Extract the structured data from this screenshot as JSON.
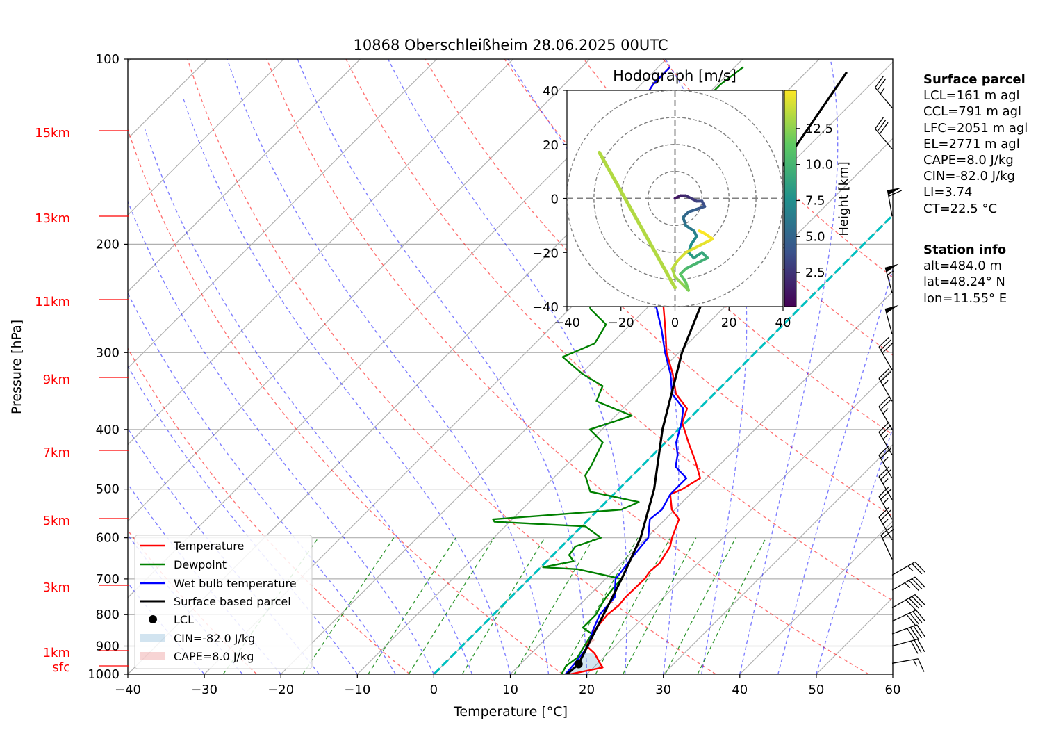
{
  "chart_data": {
    "type": "skew-t log-p diagram",
    "title": "10868 Oberschleißheim 28.06.2025 00UTC",
    "xlabel": "Temperature [°C]",
    "ylabel": "Pressure [hPa]",
    "xlim": [
      -40,
      60
    ],
    "ylim": [
      1000,
      100
    ],
    "y_scale": "log",
    "x_ticks": [
      "−40",
      "−30",
      "−20",
      "−10",
      "0",
      "10",
      "20",
      "30",
      "40",
      "50",
      "60"
    ],
    "y_ticks": [
      "100",
      "200",
      "300",
      "400",
      "500",
      "600",
      "700",
      "800",
      "900",
      "1000"
    ],
    "height_labels": [
      "15km",
      "13km",
      "11km",
      "9km",
      "7km",
      "5km",
      "3km",
      "1km",
      "sfc"
    ],
    "height_label_color": "#ff0000",
    "grid": true,
    "legend_position": "lower-left",
    "legend": [
      "Temperature",
      "Dewpoint",
      "Wet bulb temperature",
      "Surface based parcel",
      "LCL",
      "CIN=-82.0 J/kg",
      "CAPE=8.0 J/kg"
    ],
    "series": [
      {
        "name": "Temperature",
        "color": "#ff0000",
        "points": [
          [
            1000,
            17.8
          ],
          [
            975,
            21.2
          ],
          [
            960,
            20.3
          ],
          [
            925,
            18.3
          ],
          [
            900,
            16.3
          ],
          [
            850,
            15.3
          ],
          [
            800,
            14.9
          ],
          [
            775,
            15.2
          ],
          [
            750,
            15.0
          ],
          [
            700,
            15.1
          ],
          [
            680,
            14.8
          ],
          [
            660,
            15.0
          ],
          [
            620,
            14.2
          ],
          [
            600,
            13.3
          ],
          [
            560,
            11.8
          ],
          [
            540,
            9.6
          ],
          [
            510,
            7.4
          ],
          [
            500,
            8.3
          ],
          [
            480,
            9.2
          ],
          [
            450,
            6.3
          ],
          [
            420,
            3.0
          ],
          [
            390,
            -0.4
          ],
          [
            370,
            -1.6
          ],
          [
            350,
            -5.0
          ],
          [
            325,
            -8.0
          ],
          [
            300,
            -11.6
          ],
          [
            275,
            -14.8
          ],
          [
            250,
            -18.4
          ],
          [
            225,
            -23.4
          ],
          [
            210,
            -26.7
          ],
          [
            195,
            -28.6
          ],
          [
            182,
            -32.7
          ],
          [
            170,
            -34.7
          ],
          [
            158,
            -38.5
          ],
          [
            150,
            -43.0
          ],
          [
            140,
            -43.3
          ],
          [
            130,
            -45.6
          ],
          [
            120,
            -47.3
          ],
          [
            110,
            -48.4
          ],
          [
            103,
            -48.5
          ]
        ]
      },
      {
        "name": "Dewpoint",
        "color": "#008000",
        "points": [
          [
            1000,
            16.7
          ],
          [
            970,
            16.2
          ],
          [
            940,
            16.6
          ],
          [
            900,
            16.0
          ],
          [
            860,
            15.4
          ],
          [
            840,
            13.4
          ],
          [
            800,
            13.4
          ],
          [
            760,
            12.6
          ],
          [
            725,
            12.2
          ],
          [
            700,
            12.1
          ],
          [
            675,
            5.1
          ],
          [
            670,
            0.3
          ],
          [
            655,
            3.5
          ],
          [
            640,
            2.1
          ],
          [
            620,
            1.8
          ],
          [
            600,
            4.0
          ],
          [
            575,
            0.5
          ],
          [
            565,
            -12.0
          ],
          [
            560,
            -12.5
          ],
          [
            540,
            3.0
          ],
          [
            525,
            4.3
          ],
          [
            505,
            -3.4
          ],
          [
            475,
            -6.2
          ],
          [
            460,
            -6.6
          ],
          [
            440,
            -7.4
          ],
          [
            420,
            -8.2
          ],
          [
            400,
            -11.6
          ],
          [
            380,
            -7.9
          ],
          [
            360,
            -14.4
          ],
          [
            340,
            -15.6
          ],
          [
            325,
            -19.8
          ],
          [
            305,
            -24.6
          ],
          [
            290,
            -22.2
          ],
          [
            270,
            -23.2
          ],
          [
            255,
            -27.2
          ],
          [
            240,
            -30.0
          ],
          [
            225,
            -30.5
          ],
          [
            210,
            -32.7
          ],
          [
            195,
            -34.2
          ],
          [
            180,
            -33.4
          ],
          [
            165,
            -33.9
          ],
          [
            150,
            -37.7
          ],
          [
            140,
            -38.0
          ],
          [
            125,
            -39.6
          ],
          [
            110,
            -39.6
          ],
          [
            103,
            -38.9
          ]
        ]
      },
      {
        "name": "Wet bulb temperature",
        "color": "#0000ff",
        "points": [
          [
            1000,
            17.2
          ],
          [
            960,
            17.0
          ],
          [
            900,
            16.5
          ],
          [
            850,
            15.1
          ],
          [
            800,
            13.9
          ],
          [
            750,
            13.6
          ],
          [
            700,
            11.3
          ],
          [
            680,
            11.1
          ],
          [
            650,
            10.7
          ],
          [
            620,
            10.4
          ],
          [
            600,
            10.2
          ],
          [
            560,
            8.0
          ],
          [
            540,
            8.3
          ],
          [
            510,
            7.4
          ],
          [
            480,
            7.4
          ],
          [
            460,
            4.5
          ],
          [
            440,
            3.2
          ],
          [
            420,
            1.4
          ],
          [
            390,
            -0.5
          ],
          [
            370,
            -2.1
          ],
          [
            350,
            -5.5
          ],
          [
            325,
            -8.3
          ],
          [
            300,
            -11.8
          ],
          [
            275,
            -15.3
          ],
          [
            250,
            -19.4
          ],
          [
            225,
            -23.4
          ],
          [
            210,
            -26.7
          ],
          [
            195,
            -28.6
          ],
          [
            182,
            -32.7
          ],
          [
            170,
            -34.7
          ],
          [
            158,
            -38.5
          ],
          [
            150,
            -43.0
          ],
          [
            140,
            -43.3
          ],
          [
            130,
            -45.6
          ],
          [
            120,
            -47.3
          ],
          [
            110,
            -48.4
          ],
          [
            103,
            -48.5
          ]
        ]
      },
      {
        "name": "Surface based parcel",
        "color": "#000000",
        "points": [
          [
            1000,
            17.4
          ],
          [
            963,
            17.6
          ],
          [
            900,
            16.4
          ],
          [
            800,
            14.4
          ],
          [
            700,
            12.1
          ],
          [
            600,
            9.2
          ],
          [
            500,
            4.6
          ],
          [
            400,
            -2.1
          ],
          [
            300,
            -9.6
          ],
          [
            250,
            -13.4
          ],
          [
            200,
            -17.2
          ],
          [
            150,
            -20.8
          ],
          [
            105,
            -24.7
          ]
        ]
      }
    ],
    "lcl": {
      "label": "LCL",
      "pressure": 963,
      "temperature": 17.6
    },
    "cin": {
      "label": "CIN=-82.0 J/kg",
      "value": -82.0
    },
    "cape": {
      "label": "CAPE=8.0 J/kg",
      "value": 8.0
    },
    "zero_isotherm_color": "#00c0c0",
    "winds": [
      {
        "p": 960,
        "speed": 15,
        "dir": 80
      },
      {
        "p": 900,
        "speed": 30,
        "dir": 75
      },
      {
        "p": 860,
        "speed": 40,
        "dir": 70
      },
      {
        "p": 820,
        "speed": 40,
        "dir": 65
      },
      {
        "p": 780,
        "speed": 40,
        "dir": 60
      },
      {
        "p": 730,
        "speed": 35,
        "dir": 60
      },
      {
        "p": 690,
        "speed": 25,
        "dir": 60
      },
      {
        "p": 650,
        "speed": 20,
        "dir": 335
      },
      {
        "p": 605,
        "speed": 25,
        "dir": 330
      },
      {
        "p": 560,
        "speed": 25,
        "dir": 330
      },
      {
        "p": 520,
        "speed": 25,
        "dir": 330
      },
      {
        "p": 480,
        "speed": 25,
        "dir": 330
      },
      {
        "p": 440,
        "speed": 25,
        "dir": 330
      },
      {
        "p": 400,
        "speed": 25,
        "dir": 330
      },
      {
        "p": 360,
        "speed": 25,
        "dir": 330
      },
      {
        "p": 320,
        "speed": 30,
        "dir": 330
      },
      {
        "p": 280,
        "speed": 50,
        "dir": 345
      },
      {
        "p": 240,
        "speed": 55,
        "dir": 345
      },
      {
        "p": 180,
        "speed": 60,
        "dir": 350
      },
      {
        "p": 140,
        "speed": 30,
        "dir": 320
      },
      {
        "p": 120,
        "speed": 25,
        "dir": 320
      }
    ],
    "hodograph": {
      "title": "Hodograph [m/s]",
      "xlim": [
        -40,
        40
      ],
      "ylim": [
        -40,
        40
      ],
      "x_ticks": [
        "−40",
        "−20",
        "0",
        "20",
        "40"
      ],
      "y_ticks": [
        "40",
        "20",
        "0",
        "−20",
        "−40"
      ],
      "ring_radii": [
        10,
        20,
        30,
        40
      ],
      "colorbar_label": "Height [km]",
      "colorbar_ticks": [
        "2.5",
        "5.0",
        "7.5",
        "10.0",
        "12.5"
      ],
      "points": [
        [
          0,
          0,
          0.5
        ],
        [
          2,
          1,
          1.0
        ],
        [
          4,
          1,
          1.5
        ],
        [
          6,
          0,
          2.0
        ],
        [
          8,
          -1,
          2.5
        ],
        [
          10,
          -1,
          3.0
        ],
        [
          11,
          -3,
          3.5
        ],
        [
          8,
          -4,
          4.0
        ],
        [
          5,
          -5,
          4.5
        ],
        [
          3,
          -7,
          5.0
        ],
        [
          4,
          -10,
          5.5
        ],
        [
          7,
          -12,
          6.0
        ],
        [
          8,
          -14,
          6.5
        ],
        [
          6,
          -17,
          7.0
        ],
        [
          5,
          -20,
          7.5
        ],
        [
          7,
          -22,
          8.0
        ],
        [
          10,
          -20,
          8.5
        ],
        [
          12,
          -22,
          9.0
        ],
        [
          8,
          -24,
          9.5
        ],
        [
          4,
          -26,
          10.0
        ],
        [
          2,
          -28,
          10.5
        ],
        [
          4,
          -31,
          11.0
        ],
        [
          5,
          -34,
          11.5
        ],
        [
          3,
          -32,
          12.0
        ],
        [
          0,
          -29,
          12.5
        ],
        [
          -1,
          -26,
          13.0
        ],
        [
          1,
          -23,
          13.5
        ],
        [
          4,
          -20,
          14.0
        ],
        [
          8,
          -18,
          14.2
        ],
        [
          12,
          -16,
          14.4
        ],
        [
          14,
          -15,
          14.6
        ],
        [
          11,
          -13,
          14.8
        ],
        [
          9,
          -12,
          15.0
        ]
      ],
      "line": [
        [
          -28,
          17,
          13.2
        ],
        [
          -14,
          -8,
          13.2
        ],
        [
          0,
          -33,
          13.2
        ]
      ]
    }
  },
  "surface_parcel": {
    "heading": "Surface parcel",
    "lines": [
      "LCL=161 m agl",
      "CCL=791 m agl",
      "LFC=2051 m agl",
      "EL=2771 m agl",
      "CAPE=8.0 J/kg",
      "CIN=-82.0 J/kg",
      "LI=3.74",
      "CT=22.5 °C"
    ]
  },
  "station_info": {
    "heading": "Station info",
    "lines": [
      "alt=484.0 m",
      "lat=48.24° N",
      "lon=11.55° E"
    ]
  }
}
